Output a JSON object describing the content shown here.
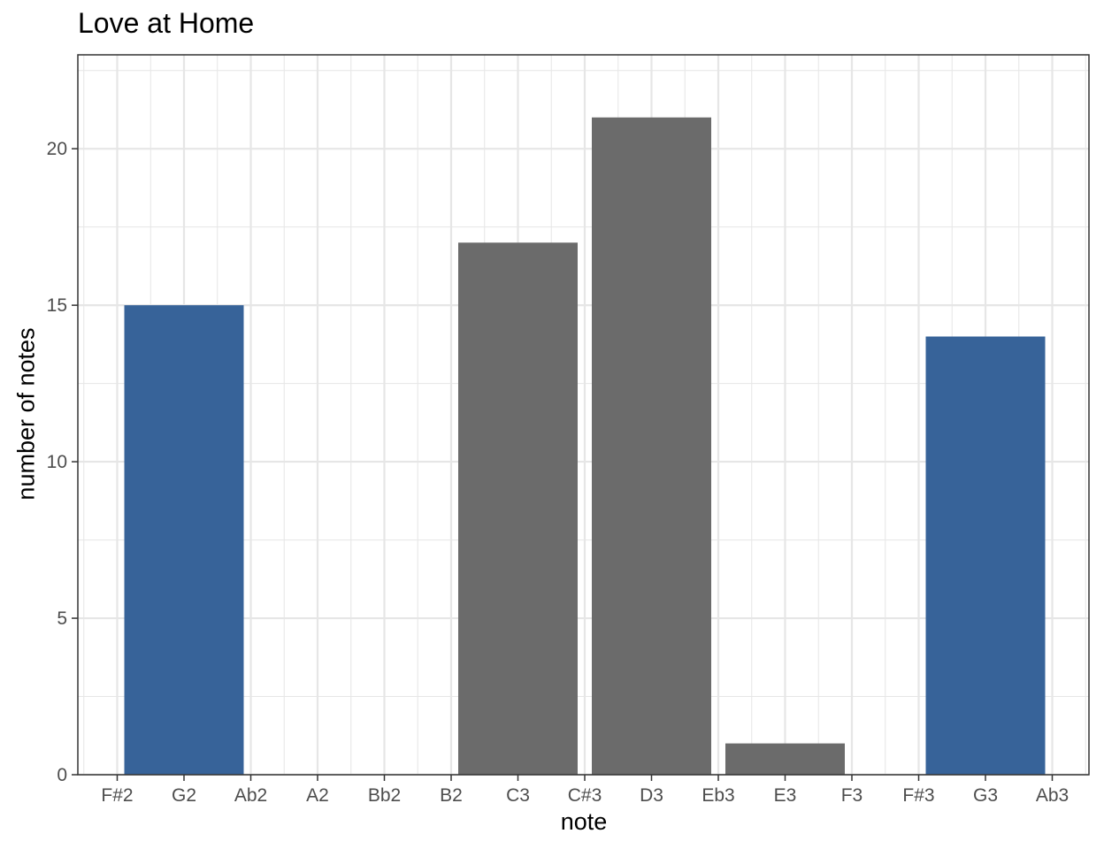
{
  "chart_data": {
    "type": "bar",
    "title": "Love at Home",
    "xlabel": "note",
    "ylabel": "number of notes",
    "ylim": [
      0,
      23
    ],
    "y_ticks": [
      0,
      5,
      10,
      15,
      20
    ],
    "tick_labels": [
      "F#2",
      "G2",
      "Ab2",
      "A2",
      "Bb2",
      "B2",
      "C3",
      "C#3",
      "D3",
      "Eb3",
      "E3",
      "F3",
      "F#3",
      "G3",
      "Ab3"
    ],
    "bars": [
      {
        "x_start": 0,
        "x_end": 2,
        "value": 15,
        "color": "#376399"
      },
      {
        "x_start": 5,
        "x_end": 7,
        "value": 17,
        "color": "#6b6b6b"
      },
      {
        "x_start": 7,
        "x_end": 9,
        "value": 21,
        "color": "#6b6b6b"
      },
      {
        "x_start": 9,
        "x_end": 11,
        "value": 1,
        "color": "#6b6b6b"
      },
      {
        "x_start": 12,
        "x_end": 14,
        "value": 14,
        "color": "#376399"
      }
    ],
    "grid": true,
    "colors": {
      "accent": "#376399",
      "neutral": "#6b6b6b",
      "grid": "#e6e6e6",
      "border": "#333333"
    }
  }
}
